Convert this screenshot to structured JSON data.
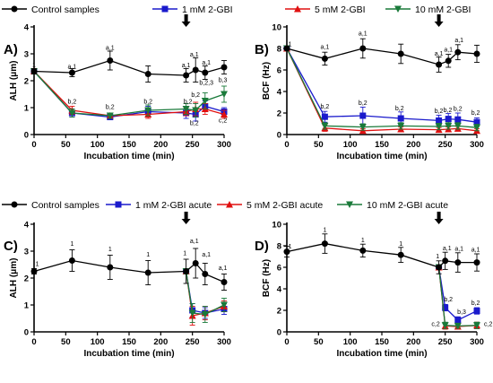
{
  "chart_data": [
    {
      "panel": "A)",
      "type": "line",
      "xlabel": "Incubation time (min)",
      "ylabel": "ALH (μm)",
      "xlim": [
        0,
        300
      ],
      "ylim": [
        0,
        4
      ],
      "xticks": [
        0,
        50,
        100,
        150,
        200,
        250,
        300
      ],
      "yticks": [
        0,
        1,
        2,
        3,
        4
      ],
      "legend": [
        "Control samples",
        "1 mM 2-GBI",
        "5 mM 2-GBI",
        "10 mM 2-GBI"
      ],
      "arrow_x": 240,
      "series": [
        {
          "name": "Control samples",
          "color": "#000000",
          "marker": "circle",
          "x": [
            0,
            60,
            120,
            180,
            240,
            255,
            270,
            300
          ],
          "y": [
            2.35,
            2.3,
            2.75,
            2.25,
            2.2,
            2.4,
            2.3,
            2.5
          ],
          "err": [
            0.1,
            0.15,
            0.35,
            0.3,
            0.25,
            0.45,
            0.25,
            0.25
          ]
        },
        {
          "name": "1 mM 2-GBI",
          "color": "#1a1acc",
          "marker": "square",
          "x": [
            0,
            60,
            120,
            180,
            240,
            255,
            270,
            300
          ],
          "y": [
            2.35,
            0.8,
            0.65,
            0.85,
            0.8,
            0.75,
            1.05,
            0.85
          ],
          "err": [
            0.1,
            0.15,
            0.1,
            0.2,
            0.2,
            0.25,
            0.2,
            0.15
          ]
        },
        {
          "name": "5 mM 2-GBI",
          "color": "#e01010",
          "marker": "triangle",
          "x": [
            0,
            60,
            120,
            180,
            240,
            255,
            270,
            300
          ],
          "y": [
            2.35,
            0.9,
            0.7,
            0.75,
            0.85,
            0.95,
            0.95,
            0.75
          ],
          "err": [
            0.1,
            0.15,
            0.1,
            0.15,
            0.15,
            0.25,
            0.2,
            0.15
          ]
        },
        {
          "name": "10 mM 2-GBI",
          "color": "#1a7a3a",
          "marker": "triangle-down",
          "x": [
            0,
            60,
            120,
            180,
            240,
            255,
            270,
            300
          ],
          "y": [
            2.35,
            0.8,
            0.7,
            0.9,
            0.95,
            0.9,
            1.25,
            1.5
          ],
          "err": [
            0.1,
            0.15,
            0.1,
            0.2,
            0.2,
            0.25,
            0.3,
            0.3
          ]
        }
      ],
      "annotations": [
        {
          "x": 0,
          "y": 2.5,
          "text": "1"
        },
        {
          "x": 60,
          "y": 2.45,
          "text": "a,1"
        },
        {
          "x": 120,
          "y": 3.15,
          "text": "a,1"
        },
        {
          "x": 240,
          "y": 2.5,
          "text": "a,1"
        },
        {
          "x": 253,
          "y": 2.9,
          "text": "a,1"
        },
        {
          "x": 272,
          "y": 2.6,
          "text": "a,1"
        },
        {
          "x": 60,
          "y": 1.15,
          "text": "b,2"
        },
        {
          "x": 120,
          "y": 0.95,
          "text": "b,2"
        },
        {
          "x": 180,
          "y": 1.15,
          "text": "b,2"
        },
        {
          "x": 243,
          "y": 1.15,
          "text": "b,2"
        },
        {
          "x": 255,
          "y": 1.4,
          "text": "b,2"
        },
        {
          "x": 272,
          "y": 1.85,
          "text": "b,2,3"
        },
        {
          "x": 298,
          "y": 1.95,
          "text": "b,3"
        },
        {
          "x": 253,
          "y": 0.35,
          "text": "b,2"
        },
        {
          "x": 298,
          "y": 0.45,
          "text": "c,2"
        }
      ]
    },
    {
      "panel": "B)",
      "type": "line",
      "xlabel": "Incubation time (min)",
      "ylabel": "BCF (Hz)",
      "xlim": [
        0,
        300
      ],
      "ylim": [
        0,
        10
      ],
      "xticks": [
        0,
        50,
        100,
        150,
        200,
        250,
        300
      ],
      "yticks": [
        0,
        2,
        4,
        6,
        8,
        10
      ],
      "arrow_x": 240,
      "series": [
        {
          "name": "Control samples",
          "color": "#000000",
          "marker": "circle",
          "x": [
            0,
            60,
            120,
            180,
            240,
            255,
            270,
            300
          ],
          "y": [
            8.0,
            7.05,
            8.0,
            7.5,
            6.5,
            6.85,
            7.65,
            7.5
          ],
          "err": [
            0.1,
            0.6,
            0.9,
            0.9,
            0.7,
            0.6,
            0.7,
            0.8
          ]
        },
        {
          "name": "1 mM 2-GBI",
          "color": "#1a1acc",
          "marker": "square",
          "x": [
            0,
            60,
            120,
            180,
            240,
            255,
            270,
            300
          ],
          "y": [
            8.0,
            1.65,
            1.75,
            1.5,
            1.3,
            1.45,
            1.4,
            1.15
          ],
          "err": [
            0.1,
            0.5,
            0.8,
            0.6,
            0.5,
            0.5,
            0.6,
            0.4
          ]
        },
        {
          "name": "5 mM 2-GBI",
          "color": "#e01010",
          "marker": "triangle",
          "x": [
            0,
            60,
            120,
            180,
            240,
            255,
            270,
            300
          ],
          "y": [
            8.0,
            0.6,
            0.35,
            0.5,
            0.45,
            0.5,
            0.55,
            0.35
          ],
          "err": [
            0.1,
            0.3,
            0.2,
            0.2,
            0.2,
            0.2,
            0.2,
            0.2
          ]
        },
        {
          "name": "10 mM 2-GBI",
          "color": "#1a7a3a",
          "marker": "triangle-down",
          "x": [
            0,
            60,
            120,
            180,
            240,
            255,
            270,
            300
          ],
          "y": [
            8.0,
            0.8,
            0.7,
            0.8,
            0.75,
            0.8,
            0.8,
            0.65
          ],
          "err": [
            0.1,
            0.3,
            0.3,
            0.3,
            0.3,
            0.3,
            0.3,
            0.3
          ]
        }
      ],
      "annotations": [
        {
          "x": 5,
          "y": 8.2,
          "text": "1"
        },
        {
          "x": 60,
          "y": 7.95,
          "text": "a,1"
        },
        {
          "x": 120,
          "y": 9.2,
          "text": "a,1"
        },
        {
          "x": 240,
          "y": 7.35,
          "text": "a,1"
        },
        {
          "x": 255,
          "y": 7.7,
          "text": "a,1"
        },
        {
          "x": 272,
          "y": 8.6,
          "text": "a,1"
        },
        {
          "x": 60,
          "y": 2.4,
          "text": "b,2"
        },
        {
          "x": 120,
          "y": 2.75,
          "text": "b,2"
        },
        {
          "x": 178,
          "y": 2.25,
          "text": "b,2"
        },
        {
          "x": 240,
          "y": 2.0,
          "text": "b,2"
        },
        {
          "x": 254,
          "y": 2.1,
          "text": "b,2"
        },
        {
          "x": 270,
          "y": 2.2,
          "text": "b,2"
        },
        {
          "x": 298,
          "y": 1.85,
          "text": "b,2"
        }
      ]
    },
    {
      "panel": "C)",
      "type": "line",
      "xlabel": "Incubation time (min)",
      "ylabel": "ALH (μm)",
      "xlim": [
        0,
        300
      ],
      "ylim": [
        0,
        4
      ],
      "xticks": [
        0,
        50,
        100,
        150,
        200,
        250,
        300
      ],
      "yticks": [
        0,
        1,
        2,
        3,
        4
      ],
      "legend": [
        "Control samples",
        "1 mM 2-GBI acute",
        "5 mM 2-GBI acute",
        "10 mM 2-GBI acute"
      ],
      "arrow_x": 240,
      "series": [
        {
          "name": "Control samples",
          "color": "#000000",
          "marker": "circle",
          "x": [
            0,
            60,
            120,
            180,
            240,
            255,
            270,
            300
          ],
          "y": [
            2.25,
            2.65,
            2.4,
            2.2,
            2.25,
            2.55,
            2.15,
            1.85
          ],
          "err": [
            0.1,
            0.4,
            0.45,
            0.45,
            0.45,
            0.55,
            0.4,
            0.3
          ]
        },
        {
          "name": "1 mM 2-GBI acute",
          "color": "#1a1acc",
          "marker": "square",
          "x": [
            240,
            250,
            270,
            300
          ],
          "y": [
            2.25,
            0.8,
            0.7,
            0.85
          ],
          "err": [
            0.1,
            0.25,
            0.2,
            0.2
          ]
        },
        {
          "name": "5 mM 2-GBI acute",
          "color": "#e01010",
          "marker": "triangle",
          "x": [
            240,
            250,
            270,
            300
          ],
          "y": [
            2.25,
            0.6,
            0.7,
            0.95
          ],
          "err": [
            0.1,
            0.35,
            0.25,
            0.2
          ]
        },
        {
          "name": "10 mM 2-GBI acute",
          "color": "#1a7a3a",
          "marker": "triangle-down",
          "x": [
            240,
            250,
            270,
            300
          ],
          "y": [
            2.25,
            0.7,
            0.65,
            1.0
          ],
          "err": [
            0.1,
            0.35,
            0.3,
            0.25
          ]
        }
      ],
      "annotations": [
        {
          "x": 5,
          "y": 2.45,
          "text": "1"
        },
        {
          "x": 60,
          "y": 3.2,
          "text": "1"
        },
        {
          "x": 120,
          "y": 3.0,
          "text": "1"
        },
        {
          "x": 180,
          "y": 2.8,
          "text": "1"
        },
        {
          "x": 238,
          "y": 2.85,
          "text": "1"
        },
        {
          "x": 253,
          "y": 3.3,
          "text": "a,1"
        },
        {
          "x": 272,
          "y": 2.8,
          "text": "a,1"
        },
        {
          "x": 298,
          "y": 2.3,
          "text": "a,1"
        }
      ]
    },
    {
      "panel": "D)",
      "type": "line",
      "xlabel": "Incubation time (min)",
      "ylabel": "BCF (Hz)",
      "xlim": [
        0,
        300
      ],
      "ylim": [
        0,
        10
      ],
      "xticks": [
        0,
        50,
        100,
        150,
        200,
        250,
        300
      ],
      "yticks": [
        0,
        2,
        4,
        6,
        8,
        10
      ],
      "arrow_x": 240,
      "series": [
        {
          "name": "Control samples",
          "color": "#000000",
          "marker": "circle",
          "x": [
            0,
            60,
            120,
            180,
            240,
            250,
            270,
            300
          ],
          "y": [
            7.45,
            8.2,
            7.55,
            7.15,
            6.0,
            6.6,
            6.45,
            6.45
          ],
          "err": [
            0.5,
            0.9,
            0.6,
            0.7,
            0.6,
            0.8,
            0.9,
            0.8
          ]
        },
        {
          "name": "1 mM 2-GBI acute",
          "color": "#1a1acc",
          "marker": "square",
          "x": [
            240,
            250,
            270,
            300
          ],
          "y": [
            6.0,
            2.25,
            1.1,
            1.95
          ],
          "err": [
            0.1,
            0.3,
            0.3,
            0.3
          ]
        },
        {
          "name": "5 mM 2-GBI acute",
          "color": "#e01010",
          "marker": "triangle",
          "x": [
            240,
            250,
            270,
            300
          ],
          "y": [
            6.0,
            0.55,
            0.5,
            0.6
          ],
          "err": [
            0.1,
            0.3,
            0.2,
            0.3
          ]
        },
        {
          "name": "10 mM 2-GBI acute",
          "color": "#1a7a3a",
          "marker": "triangle-down",
          "x": [
            240,
            250,
            270,
            300
          ],
          "y": [
            6.0,
            0.6,
            0.55,
            0.6
          ],
          "err": [
            0.1,
            0.3,
            0.2,
            0.3
          ]
        }
      ],
      "annotations": [
        {
          "x": 5,
          "y": 7.75,
          "text": "1"
        },
        {
          "x": 60,
          "y": 9.3,
          "text": "1"
        },
        {
          "x": 120,
          "y": 8.35,
          "text": "1"
        },
        {
          "x": 180,
          "y": 8.0,
          "text": "1"
        },
        {
          "x": 238,
          "y": 6.85,
          "text": "1"
        },
        {
          "x": 253,
          "y": 7.6,
          "text": "a,1"
        },
        {
          "x": 272,
          "y": 7.55,
          "text": "a,1"
        },
        {
          "x": 298,
          "y": 7.45,
          "text": "a,1"
        },
        {
          "x": 255,
          "y": 2.85,
          "text": "b,2"
        },
        {
          "x": 276,
          "y": 1.65,
          "text": "b,3"
        },
        {
          "x": 298,
          "y": 2.5,
          "text": "b,2"
        },
        {
          "x": 235,
          "y": 0.55,
          "text": "c,2"
        },
        {
          "x": 318,
          "y": 0.55,
          "text": "c,2"
        }
      ]
    }
  ]
}
